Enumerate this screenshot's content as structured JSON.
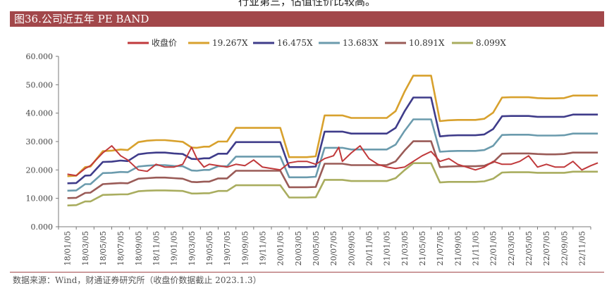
{
  "header_partial_text": "行业第三，估值性价比较高。",
  "figure_title": "图36.公司近五年 PE BAND",
  "source_note": "数据来源：Wind，财通证券研究所（收盘价数据截止 2023.1.3）",
  "chart_data": {
    "type": "line",
    "ylim": [
      0,
      60
    ],
    "yticks": [
      "0.000",
      "10.000",
      "20.000",
      "30.000",
      "40.000",
      "50.000",
      "60.000"
    ],
    "grid": false,
    "legend_position": "top",
    "x_tick_labels": [
      "18/01/05",
      "18/03/05",
      "18/05/05",
      "18/07/05",
      "18/09/05",
      "18/11/05",
      "19/01/05",
      "19/03/05",
      "19/05/05",
      "19/07/05",
      "19/09/05",
      "19/11/05",
      "20/01/05",
      "20/03/05",
      "20/05/05",
      "20/07/05",
      "20/09/05",
      "20/11/05",
      "21/01/05",
      "21/03/05",
      "21/05/05",
      "21/07/05",
      "21/09/05",
      "21/11/05",
      "22/01/05",
      "22/03/05",
      "22/05/05",
      "22/07/05",
      "22/09/05",
      "22/11/05"
    ],
    "x": [
      0,
      0.5,
      1,
      1.3,
      2,
      2.5,
      3,
      3.4,
      4,
      4.5,
      5,
      5.5,
      6,
      6.5,
      7,
      7.3,
      7.7,
      8,
      8.5,
      9,
      9.5,
      10,
      10.5,
      11,
      11.5,
      12,
      12.5,
      13,
      13.5,
      14,
      14.5,
      15,
      15.3,
      15.5,
      16,
      16.5,
      17,
      17.5,
      18,
      18.5,
      19,
      19.5,
      20,
      20.5,
      21,
      21.5,
      22,
      22.5,
      23,
      23.5,
      24,
      24.5,
      25,
      25.5,
      26,
      26.5,
      27,
      27.5,
      28,
      28.5,
      29,
      29.5,
      29.9
    ],
    "series": [
      {
        "name": "收盘价",
        "color": "#c0393b",
        "y": [
          18.5,
          18.0,
          20.5,
          21.5,
          26,
          28.5,
          25,
          23.5,
          20,
          19.5,
          22,
          21,
          21,
          22,
          28,
          24,
          21,
          22,
          21.5,
          21,
          22,
          21.5,
          23.5,
          21,
          20.5,
          20,
          22.5,
          23,
          23,
          22,
          24,
          25,
          28,
          23,
          26,
          28.5,
          24,
          22,
          21,
          20.5,
          21,
          23,
          25,
          26.5,
          23,
          24,
          22,
          21,
          20,
          21,
          23,
          22,
          22,
          23,
          25,
          21,
          22,
          21,
          21,
          23,
          20,
          21.5,
          22.5
        ]
      },
      {
        "name": "19.267X",
        "color": "#d8a12d",
        "y": [
          17.8,
          18.0,
          21.0,
          21.2,
          26.6,
          26.8,
          27.2,
          27.0,
          29.8,
          30.3,
          30.5,
          30.5,
          30.2,
          29.9,
          27.9,
          27.8,
          28.2,
          28.2,
          30.0,
          30.0,
          34.8,
          34.8,
          34.8,
          34.8,
          34.8,
          34.8,
          24.5,
          24.5,
          24.5,
          24.8,
          39.2,
          39.2,
          39.2,
          39.2,
          38.3,
          38.3,
          38.3,
          38.3,
          38.3,
          40.7,
          47.5,
          53.2,
          53.2,
          53.2,
          37.2,
          37.5,
          37.6,
          37.6,
          37.6,
          38.0,
          40.2,
          45.5,
          45.6,
          45.6,
          45.6,
          45.3,
          45.2,
          45.2,
          45.3,
          46.2,
          46.2,
          46.2,
          46.2
        ]
      },
      {
        "name": "16.475X",
        "color": "#3f3c8a",
        "y": [
          15.3,
          15.4,
          18.0,
          18.1,
          22.8,
          22.9,
          23.3,
          23.1,
          25.5,
          25.9,
          26.1,
          26.1,
          25.8,
          25.6,
          23.9,
          23.8,
          24.1,
          24.1,
          25.7,
          25.7,
          29.8,
          29.8,
          29.8,
          29.8,
          29.8,
          29.8,
          21.0,
          21.0,
          21.0,
          21.2,
          33.5,
          33.5,
          33.5,
          33.5,
          32.8,
          32.8,
          32.8,
          32.8,
          32.8,
          34.8,
          40.6,
          45.5,
          45.5,
          45.5,
          31.8,
          32.1,
          32.2,
          32.2,
          32.2,
          32.5,
          34.4,
          38.9,
          39.0,
          39.0,
          39.0,
          38.7,
          38.7,
          38.7,
          38.7,
          39.5,
          39.5,
          39.5,
          39.5
        ]
      },
      {
        "name": "13.683X",
        "color": "#6b9bad",
        "y": [
          12.7,
          12.8,
          15.0,
          15.0,
          18.9,
          19.0,
          19.3,
          19.2,
          21.2,
          21.5,
          21.7,
          21.7,
          21.4,
          21.3,
          19.8,
          19.7,
          20.0,
          20.0,
          21.3,
          21.3,
          24.7,
          24.7,
          24.7,
          24.7,
          24.7,
          24.7,
          17.4,
          17.4,
          17.4,
          17.6,
          27.8,
          27.8,
          27.8,
          27.8,
          27.2,
          27.2,
          27.2,
          27.2,
          27.2,
          28.9,
          33.7,
          37.8,
          37.8,
          37.8,
          26.4,
          26.6,
          26.7,
          26.7,
          26.7,
          27.0,
          28.5,
          32.3,
          32.4,
          32.4,
          32.4,
          32.1,
          32.1,
          32.1,
          32.2,
          32.8,
          32.8,
          32.8,
          32.8
        ]
      },
      {
        "name": "10.891X",
        "color": "#9a5b57",
        "y": [
          10.1,
          10.2,
          11.9,
          12.0,
          15.0,
          15.2,
          15.4,
          15.3,
          16.9,
          17.1,
          17.3,
          17.3,
          17.1,
          16.9,
          15.8,
          15.7,
          15.9,
          15.9,
          17.0,
          17.0,
          19.7,
          19.7,
          19.7,
          19.7,
          19.7,
          19.7,
          13.9,
          13.9,
          13.9,
          14.0,
          22.2,
          22.2,
          22.2,
          22.2,
          21.7,
          21.7,
          21.7,
          21.7,
          21.7,
          23.0,
          26.8,
          30.1,
          30.1,
          30.1,
          21.0,
          21.2,
          21.3,
          21.3,
          21.3,
          21.5,
          22.7,
          25.7,
          25.8,
          25.8,
          25.8,
          25.6,
          25.5,
          25.5,
          25.6,
          26.1,
          26.1,
          26.1,
          26.1
        ]
      },
      {
        "name": "8.099X",
        "color": "#a9ad5f",
        "y": [
          7.5,
          7.6,
          8.9,
          8.9,
          11.2,
          11.3,
          11.4,
          11.4,
          12.5,
          12.7,
          12.8,
          12.8,
          12.7,
          12.6,
          11.7,
          11.7,
          11.8,
          11.8,
          12.6,
          12.6,
          14.6,
          14.6,
          14.6,
          14.6,
          14.6,
          14.6,
          10.3,
          10.3,
          10.3,
          10.4,
          16.5,
          16.5,
          16.5,
          16.5,
          16.1,
          16.1,
          16.1,
          16.1,
          16.1,
          17.1,
          19.9,
          22.4,
          22.4,
          22.4,
          15.6,
          15.8,
          15.8,
          15.8,
          15.8,
          16.0,
          16.9,
          19.1,
          19.2,
          19.2,
          19.2,
          19.0,
          19.0,
          19.0,
          19.0,
          19.4,
          19.4,
          19.4,
          19.4
        ]
      }
    ]
  }
}
